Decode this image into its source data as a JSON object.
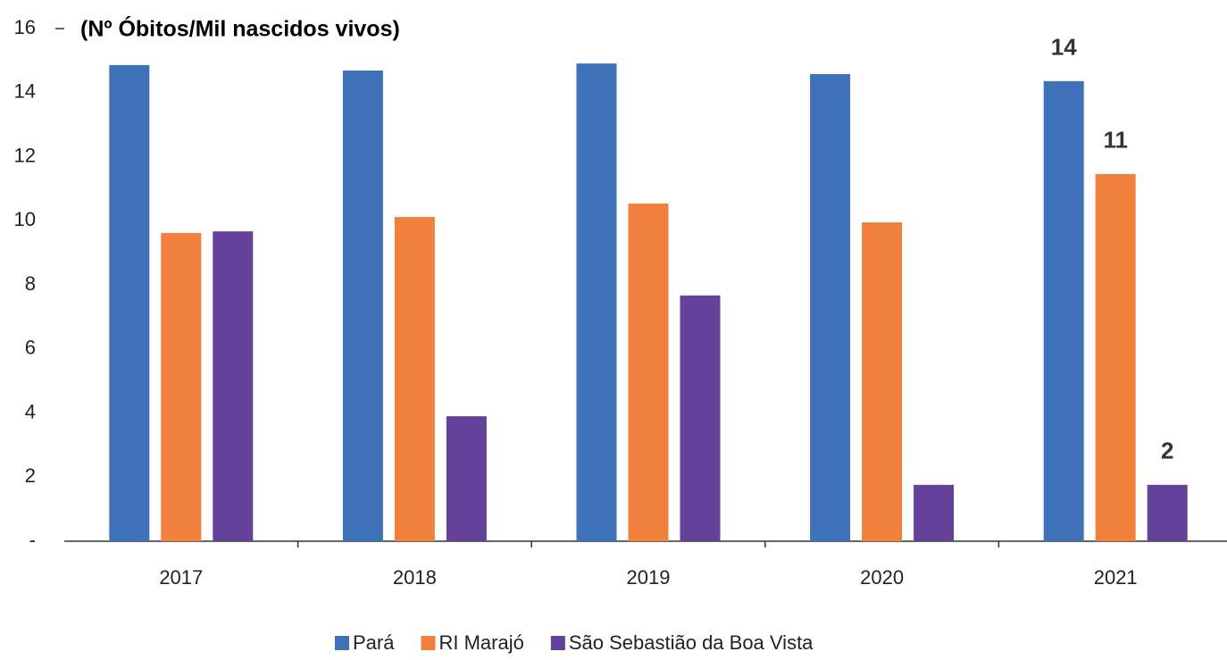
{
  "chart_data": {
    "type": "bar",
    "title": "(Nº Óbitos/Mil nascidos vivos)",
    "categories": [
      "2017",
      "2018",
      "2019",
      "2020",
      "2021"
    ],
    "series": [
      {
        "name": "Pará",
        "color": "#3f72b8",
        "values": [
          14.86,
          14.69,
          14.91,
          14.58,
          14.36
        ],
        "value_labels": [
          null,
          null,
          null,
          null,
          "14"
        ]
      },
      {
        "name": "RI Marajó",
        "color": "#f0803c",
        "values": [
          9.62,
          10.12,
          10.54,
          9.95,
          11.46
        ],
        "value_labels": [
          null,
          null,
          null,
          null,
          "11"
        ]
      },
      {
        "name": "São Sebastião da Boa Vista",
        "color": "#65429a",
        "values": [
          9.67,
          3.9,
          7.67,
          1.76,
          1.76
        ],
        "value_labels": [
          null,
          null,
          null,
          null,
          "2"
        ]
      }
    ],
    "ylim": [
      0,
      16
    ],
    "yticks": [
      {
        "value": 0,
        "label": "-"
      },
      2,
      4,
      6,
      8,
      10,
      12,
      14,
      16
    ],
    "grid": false,
    "legend": "bottom"
  }
}
